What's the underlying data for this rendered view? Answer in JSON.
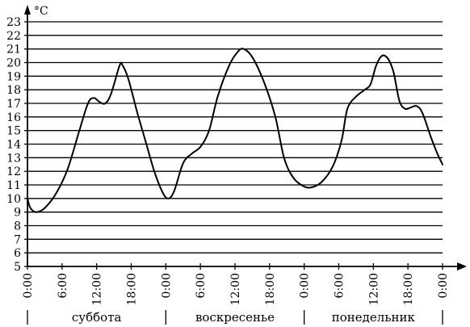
{
  "chart_data": {
    "type": "line",
    "unit": "°C",
    "x_unit": "hours",
    "ylim": [
      5,
      23
    ],
    "yticks": [
      5,
      6,
      7,
      8,
      9,
      10,
      11,
      12,
      13,
      14,
      15,
      16,
      17,
      18,
      19,
      20,
      21,
      22,
      23
    ],
    "grid": true,
    "xticks": [
      {
        "hour": 0,
        "label": "0:00"
      },
      {
        "hour": 6,
        "label": "6:00"
      },
      {
        "hour": 12,
        "label": "12:00"
      },
      {
        "hour": 18,
        "label": "18:00"
      },
      {
        "hour": 24,
        "label": "0:00"
      },
      {
        "hour": 30,
        "label": "6:00"
      },
      {
        "hour": 36,
        "label": "12:00"
      },
      {
        "hour": 42,
        "label": "18:00"
      },
      {
        "hour": 48,
        "label": "0:00"
      },
      {
        "hour": 54,
        "label": "6:00"
      },
      {
        "hour": 60,
        "label": "12:00"
      },
      {
        "hour": 66,
        "label": "18:00"
      },
      {
        "hour": 72,
        "label": "0:00"
      }
    ],
    "days": [
      {
        "label": "суббота",
        "start": 0,
        "end": 24
      },
      {
        "label": "воскресенье",
        "start": 24,
        "end": 48
      },
      {
        "label": "понедельник",
        "start": 48,
        "end": 72
      }
    ],
    "series": [
      {
        "points": [
          [
            0,
            10.0
          ],
          [
            0.5,
            9.3
          ],
          [
            1.5,
            9.0
          ],
          [
            3,
            9.3
          ],
          [
            5,
            10.4
          ],
          [
            7,
            12.2
          ],
          [
            9,
            15.0
          ],
          [
            10.5,
            17.0
          ],
          [
            11.5,
            17.4
          ],
          [
            12.5,
            17.1
          ],
          [
            13.5,
            17.0
          ],
          [
            14.5,
            17.7
          ],
          [
            16,
            19.8
          ],
          [
            16.5,
            19.8
          ],
          [
            17.5,
            18.8
          ],
          [
            19,
            16.4
          ],
          [
            20.5,
            14.2
          ],
          [
            22,
            12.0
          ],
          [
            23.5,
            10.4
          ],
          [
            24.5,
            10.0
          ],
          [
            25.5,
            10.6
          ],
          [
            27,
            12.6
          ],
          [
            28.5,
            13.3
          ],
          [
            30,
            13.8
          ],
          [
            31.5,
            15.0
          ],
          [
            33,
            17.5
          ],
          [
            35,
            19.8
          ],
          [
            36.5,
            20.8
          ],
          [
            37.5,
            21.0
          ],
          [
            39,
            20.4
          ],
          [
            41,
            18.6
          ],
          [
            43,
            16.0
          ],
          [
            44.5,
            13.0
          ],
          [
            46,
            11.6
          ],
          [
            47.5,
            11.0
          ],
          [
            49,
            10.8
          ],
          [
            51,
            11.2
          ],
          [
            53,
            12.4
          ],
          [
            54.5,
            14.3
          ],
          [
            55.5,
            16.6
          ],
          [
            57,
            17.5
          ],
          [
            58.5,
            18.0
          ],
          [
            59.5,
            18.4
          ],
          [
            60.5,
            19.8
          ],
          [
            61.5,
            20.5
          ],
          [
            62.5,
            20.3
          ],
          [
            63.5,
            19.3
          ],
          [
            64.5,
            17.2
          ],
          [
            65.5,
            16.6
          ],
          [
            66.5,
            16.7
          ],
          [
            67.5,
            16.8
          ],
          [
            68.5,
            16.3
          ],
          [
            70,
            14.5
          ],
          [
            71,
            13.4
          ],
          [
            72,
            12.5
          ]
        ]
      }
    ]
  }
}
